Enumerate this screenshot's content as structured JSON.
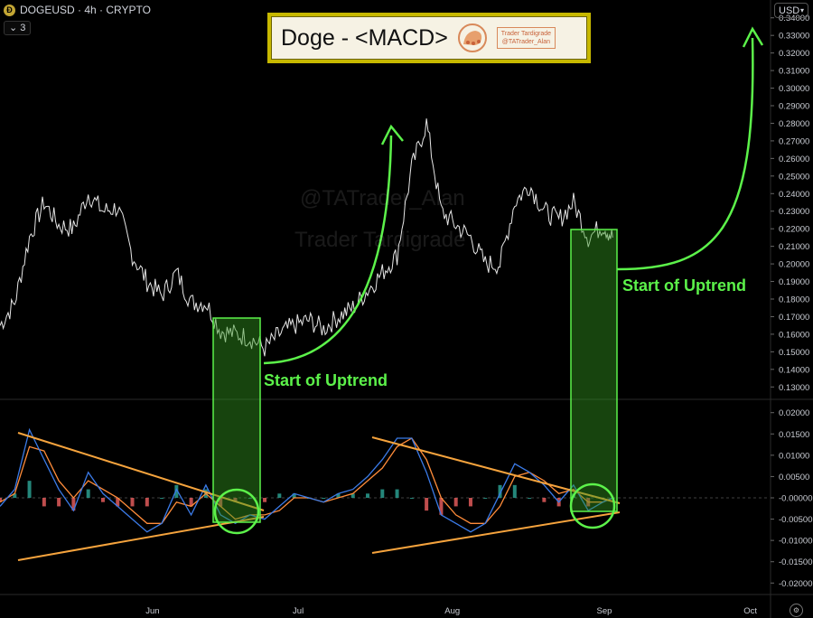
{
  "header": {
    "symbol": "DOGEUSD · 4h · CRYPTO",
    "coin_icon": "dogecoin-icon",
    "indicator_toggle": "⌄ 3",
    "currency": "USD"
  },
  "title": {
    "text": "Doge - <MACD>",
    "logo_icon": "tardigrade-logo",
    "brand_line1": "Trader Tardigrade",
    "brand_line2": "@TATrader_Alan"
  },
  "watermark": {
    "line1": "@TATrader_Alan",
    "line2": "Trader Tardigrade"
  },
  "annotations": {
    "label1": "Start of Uptrend",
    "label2": "Start of Uptrend"
  },
  "colors": {
    "background": "#000000",
    "price": "#e6e6e6",
    "macd_line": "#3b7be8",
    "signal_line": "#ff8c3a",
    "hist_up": "#2a9d8f",
    "hist_down": "#e05a5a",
    "triangle": "#f5a33d",
    "highlight": "#5cf24a"
  },
  "chart_data": {
    "type": "line",
    "title": "",
    "ylabel": "",
    "price_ticks": [
      "0.34000",
      "0.33000",
      "0.32000",
      "0.31000",
      "0.30000",
      "0.29000",
      "0.28000",
      "0.27000",
      "0.26000",
      "0.25000",
      "0.24000",
      "0.23000",
      "0.22000",
      "0.21000",
      "0.20000",
      "0.19000",
      "0.18000",
      "0.17000",
      "0.16000",
      "0.15000",
      "0.14000",
      "0.13000"
    ],
    "macd_ticks": [
      "0.02000",
      "0.01500",
      "0.01000",
      "0.00500",
      "-0.00000",
      "-0.00500",
      "-0.01000",
      "-0.01500",
      "-0.02000"
    ],
    "x_ticks": [
      "Jun",
      "Jul",
      "Aug",
      "Sep",
      "Oct"
    ],
    "price_series": {
      "name": "",
      "x": [
        "2024-05-01",
        "2024-05-04",
        "2024-05-07",
        "2024-05-10",
        "2024-05-13",
        "2024-05-16",
        "2024-05-19",
        "2024-05-22",
        "2024-05-25",
        "2024-05-28",
        "2024-05-31",
        "2024-06-03",
        "2024-06-06",
        "2024-06-09",
        "2024-06-12",
        "2024-06-15",
        "2024-06-18",
        "2024-06-21",
        "2024-06-24",
        "2024-06-27",
        "2024-06-30",
        "2024-07-03",
        "2024-07-06",
        "2024-07-09",
        "2024-07-12",
        "2024-07-15",
        "2024-07-18",
        "2024-07-21",
        "2024-07-24",
        "2024-07-27",
        "2024-07-30",
        "2024-08-02",
        "2024-08-05",
        "2024-08-08",
        "2024-08-11",
        "2024-08-14",
        "2024-08-17",
        "2024-08-20",
        "2024-08-23",
        "2024-08-26",
        "2024-08-29",
        "2024-09-01",
        "2024-09-03"
      ],
      "values": [
        0.165,
        0.178,
        0.215,
        0.235,
        0.222,
        0.22,
        0.24,
        0.23,
        0.232,
        0.205,
        0.19,
        0.182,
        0.195,
        0.178,
        0.178,
        0.162,
        0.16,
        0.158,
        0.152,
        0.16,
        0.165,
        0.168,
        0.163,
        0.17,
        0.175,
        0.185,
        0.195,
        0.205,
        0.255,
        0.28,
        0.23,
        0.222,
        0.215,
        0.2,
        0.2,
        0.235,
        0.245,
        0.23,
        0.225,
        0.235,
        0.215,
        0.222,
        0.215
      ]
    },
    "macd_series": {
      "x": [
        "2024-05-01",
        "2024-05-04",
        "2024-05-07",
        "2024-05-10",
        "2024-05-13",
        "2024-05-16",
        "2024-05-19",
        "2024-05-22",
        "2024-05-25",
        "2024-05-28",
        "2024-05-31",
        "2024-06-03",
        "2024-06-06",
        "2024-06-09",
        "2024-06-12",
        "2024-06-15",
        "2024-06-18",
        "2024-06-21",
        "2024-06-24",
        "2024-06-27",
        "2024-06-30",
        "2024-07-03",
        "2024-07-06",
        "2024-07-09",
        "2024-07-12",
        "2024-07-15",
        "2024-07-18",
        "2024-07-21",
        "2024-07-24",
        "2024-07-27",
        "2024-07-30",
        "2024-08-02",
        "2024-08-05",
        "2024-08-08",
        "2024-08-11",
        "2024-08-14",
        "2024-08-17",
        "2024-08-20",
        "2024-08-23",
        "2024-08-26",
        "2024-08-29",
        "2024-09-01",
        "2024-09-03"
      ],
      "macd": [
        -0.002,
        0.002,
        0.016,
        0.009,
        0.002,
        -0.003,
        0.006,
        0.001,
        -0.002,
        -0.005,
        -0.008,
        -0.006,
        0.002,
        -0.004,
        0.003,
        -0.004,
        -0.006,
        -0.004,
        -0.005,
        -0.002,
        0.001,
        0.0,
        -0.001,
        0.001,
        0.002,
        0.005,
        0.009,
        0.014,
        0.014,
        0.006,
        -0.004,
        -0.006,
        -0.008,
        -0.006,
        0.001,
        0.008,
        0.006,
        0.003,
        -0.001,
        0.003,
        -0.003,
        -0.001,
        0.0
      ],
      "signal": [
        -0.001,
        0.001,
        0.012,
        0.011,
        0.004,
        0.0,
        0.004,
        0.002,
        0.0,
        -0.003,
        -0.006,
        -0.006,
        -0.001,
        -0.002,
        0.001,
        -0.002,
        -0.005,
        -0.004,
        -0.004,
        -0.003,
        0.0,
        0.0,
        -0.001,
        0.0,
        0.001,
        0.004,
        0.007,
        0.012,
        0.014,
        0.009,
        0.0,
        -0.004,
        -0.006,
        -0.006,
        -0.002,
        0.005,
        0.006,
        0.004,
        0.001,
        0.002,
        -0.001,
        -0.001,
        0.0
      ]
    },
    "price_ylim": [
      0.125,
      0.345
    ],
    "macd_ylim": [
      -0.021,
      0.021
    ],
    "grid": false,
    "legend": "none"
  }
}
